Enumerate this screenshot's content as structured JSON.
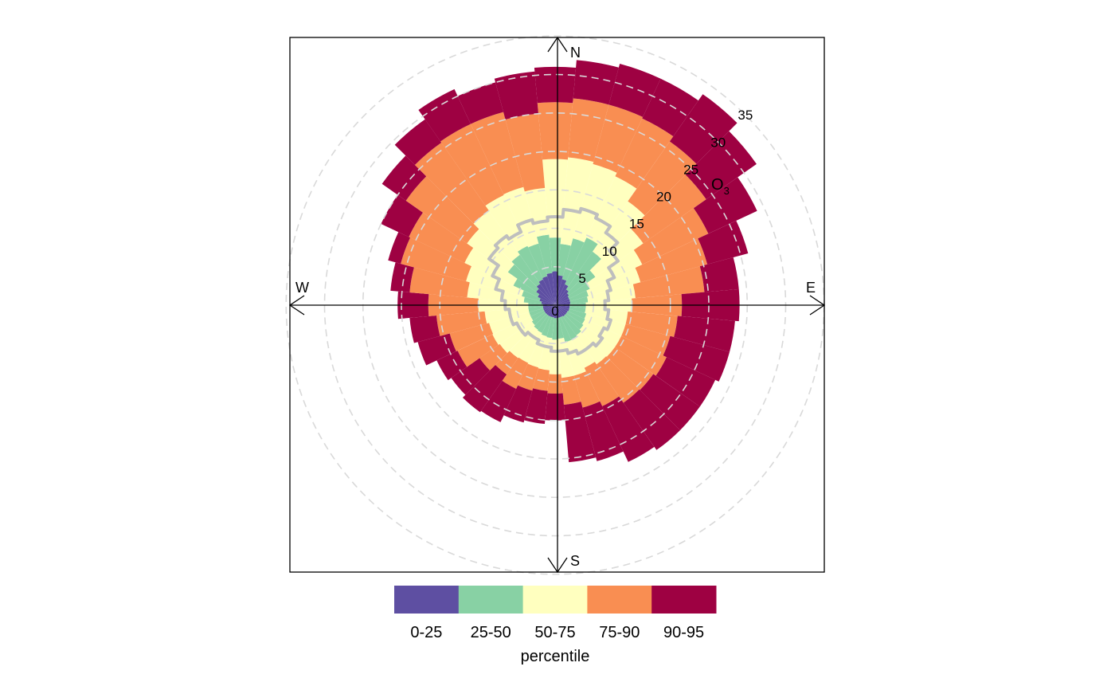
{
  "chart_data": {
    "type": "polar-percentile-rose",
    "pollutant_label": "O",
    "pollutant_subscript": "3",
    "directions": [
      "N",
      "E",
      "S",
      "W"
    ],
    "radial_axis": {
      "min": 0,
      "max": 35,
      "ticks": [
        "0",
        "5",
        "10",
        "15",
        "20",
        "25",
        "30",
        "35"
      ]
    },
    "bin_width_deg": 10,
    "bin_centers_deg": [
      0,
      10,
      20,
      30,
      40,
      50,
      60,
      70,
      80,
      90,
      100,
      110,
      120,
      130,
      140,
      150,
      160,
      170,
      180,
      190,
      200,
      210,
      220,
      230,
      240,
      250,
      260,
      270,
      280,
      290,
      300,
      310,
      320,
      330,
      340,
      350
    ],
    "series": [
      {
        "name": "0-25",
        "color": "#5E4FA2",
        "values": [
          4.4,
          3.9,
          3.5,
          3.0,
          2.5,
          2.2,
          2.0,
          2.0,
          2.0,
          1.9,
          1.9,
          1.9,
          1.8,
          1.8,
          1.8,
          1.7,
          1.7,
          1.7,
          1.7,
          1.6,
          1.6,
          1.6,
          1.6,
          1.6,
          1.6,
          1.6,
          1.6,
          1.6,
          1.8,
          2.1,
          2.5,
          3.0,
          3.4,
          3.7,
          3.9,
          4.2
        ]
      },
      {
        "name": "25-50",
        "color": "#88D1A4",
        "values": [
          8.8,
          8.0,
          9.0,
          9.7,
          8.5,
          6.4,
          5.0,
          4.5,
          4.3,
          4.0,
          4.0,
          4.2,
          4.3,
          4.5,
          4.8,
          5.0,
          5.0,
          4.4,
          4.5,
          4.3,
          4.2,
          4.0,
          3.9,
          3.7,
          3.5,
          3.5,
          3.5,
          3.5,
          4.1,
          4.5,
          6.0,
          7.5,
          8.0,
          8.5,
          8.3,
          9.2
        ]
      },
      {
        "name": "50-75",
        "color": "#FFFFBF",
        "values": [
          19.0,
          19.3,
          19.0,
          18.5,
          16.5,
          14.0,
          12.5,
          11.5,
          10.5,
          10.0,
          9.5,
          9.5,
          9.5,
          9.5,
          9.4,
          9.0,
          9.5,
          9.5,
          9.0,
          8.5,
          8.4,
          8.3,
          8.4,
          8.8,
          9.0,
          8.9,
          9.2,
          10.0,
          11.5,
          12.0,
          13.0,
          14.0,
          15.0,
          15.8,
          15.9,
          15.3
        ]
      },
      {
        "name": "75-90",
        "color": "#F98E52",
        "values": [
          26.4,
          27.0,
          27.0,
          26.8,
          26.0,
          24.0,
          22.0,
          20.5,
          19.5,
          16.5,
          16.0,
          15.5,
          16.0,
          15.6,
          15.5,
          14.5,
          13.8,
          13.0,
          11.5,
          11.2,
          11.5,
          12.0,
          11.0,
          12.0,
          14.0,
          14.2,
          15.5,
          16.5,
          19.0,
          20.8,
          21.0,
          23.7,
          25.8,
          26.0,
          26.0,
          25.0
        ]
      },
      {
        "name": "90-95",
        "color": "#9E0142",
        "values": [
          31.0,
          32.0,
          32.5,
          32.5,
          33.5,
          32.0,
          29.0,
          26.0,
          24.0,
          24.0,
          23.5,
          23.5,
          23.0,
          23.0,
          23.0,
          22.5,
          21.0,
          20.5,
          15.0,
          15.5,
          15.8,
          16.8,
          17.0,
          16.5,
          17.0,
          18.5,
          19.0,
          20.5,
          21.5,
          22.5,
          25.0,
          27.5,
          29.5,
          31.0,
          30.0,
          30.5
        ]
      }
    ],
    "overlay_line": {
      "name": "mean",
      "color": "#BEBEBE",
      "values": [
        11.5,
        12.5,
        13.0,
        12.5,
        11.5,
        10.0,
        8.5,
        7.5,
        7.0,
        6.5,
        7.0,
        7.5,
        7.0,
        7.5,
        7.0,
        7.0,
        6.5,
        6.0,
        6.0,
        5.5,
        5.5,
        5.0,
        5.0,
        5.5,
        5.5,
        6.0,
        6.0,
        6.5,
        7.0,
        8.0,
        9.0,
        10.5,
        11.0,
        10.5,
        11.5,
        11.0
      ]
    },
    "legend": {
      "position": "bottom",
      "title": "percentile",
      "entries": [
        {
          "label": "0-25",
          "color": "#5E4FA2"
        },
        {
          "label": "25-50",
          "color": "#88D1A4"
        },
        {
          "label": "50-75",
          "color": "#FFFFBF"
        },
        {
          "label": "75-90",
          "color": "#F98E52"
        },
        {
          "label": "90-95",
          "color": "#9E0142"
        }
      ]
    },
    "grid": true
  }
}
